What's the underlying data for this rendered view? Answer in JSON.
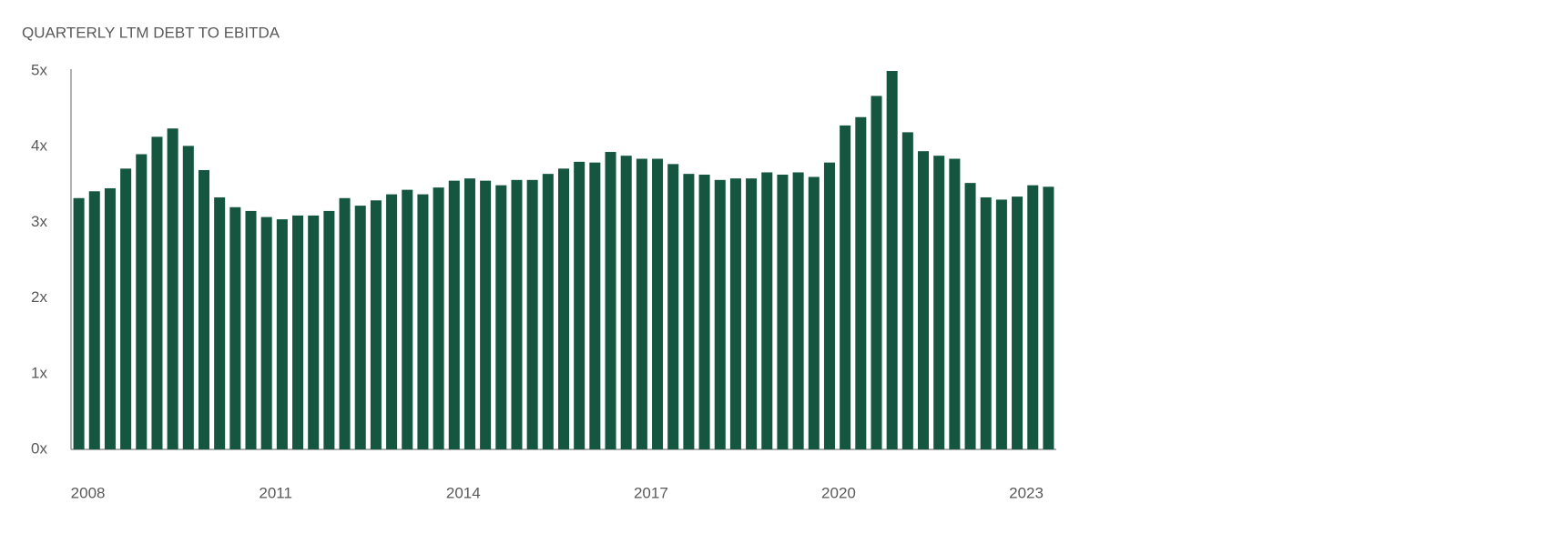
{
  "chart_data": {
    "type": "bar",
    "title": "QUARTERLY LTM DEBT TO EBITDA",
    "categories": [
      "2008",
      null,
      null,
      null,
      null,
      null,
      null,
      null,
      null,
      null,
      null,
      null,
      "2011",
      null,
      null,
      null,
      null,
      null,
      null,
      null,
      null,
      null,
      null,
      null,
      "2014",
      null,
      null,
      null,
      null,
      null,
      null,
      null,
      null,
      null,
      null,
      null,
      "2017",
      null,
      null,
      null,
      null,
      null,
      null,
      null,
      null,
      null,
      null,
      null,
      "2020",
      null,
      null,
      null,
      null,
      null,
      null,
      null,
      null,
      null,
      null,
      null,
      "2023",
      null,
      null
    ],
    "values": [
      3.32,
      3.41,
      3.45,
      3.71,
      3.9,
      4.13,
      4.24,
      4.01,
      3.69,
      3.33,
      3.2,
      3.15,
      3.07,
      3.04,
      3.09,
      3.09,
      3.15,
      3.32,
      3.22,
      3.29,
      3.37,
      3.43,
      3.37,
      3.46,
      3.55,
      3.58,
      3.55,
      3.49,
      3.56,
      3.56,
      3.64,
      3.71,
      3.8,
      3.79,
      3.93,
      3.88,
      3.84,
      3.84,
      3.77,
      3.64,
      3.63,
      3.56,
      3.58,
      3.58,
      3.66,
      3.63,
      3.66,
      3.6,
      3.79,
      4.28,
      4.39,
      4.67,
      5.0,
      4.19,
      3.94,
      3.88,
      3.84,
      3.52,
      3.33,
      3.3,
      3.34,
      3.49,
      3.47
    ],
    "color": "#14563f",
    "ylim": [
      0,
      5
    ],
    "yticks": [
      {
        "value": 0,
        "label": "0x"
      },
      {
        "value": 1,
        "label": "1x"
      },
      {
        "value": 2,
        "label": "2x"
      },
      {
        "value": 3,
        "label": "3x"
      },
      {
        "value": 4,
        "label": "4x"
      },
      {
        "value": 5,
        "label": "5x"
      }
    ],
    "grid": false
  }
}
